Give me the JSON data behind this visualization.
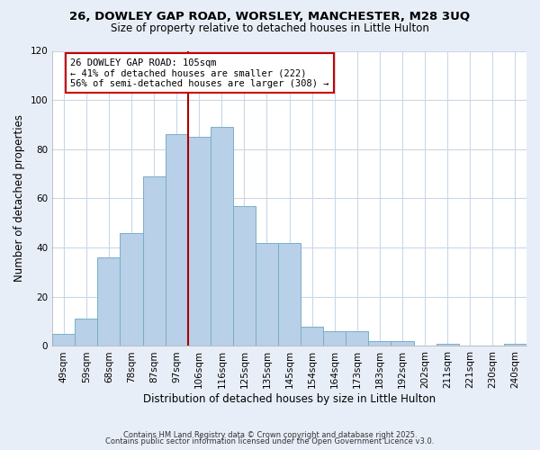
{
  "title1": "26, DOWLEY GAP ROAD, WORSLEY, MANCHESTER, M28 3UQ",
  "title2": "Size of property relative to detached houses in Little Hulton",
  "xlabel": "Distribution of detached houses by size in Little Hulton",
  "ylabel": "Number of detached properties",
  "bar_labels": [
    "49sqm",
    "59sqm",
    "68sqm",
    "78sqm",
    "87sqm",
    "97sqm",
    "106sqm",
    "116sqm",
    "125sqm",
    "135sqm",
    "145sqm",
    "154sqm",
    "164sqm",
    "173sqm",
    "183sqm",
    "192sqm",
    "202sqm",
    "211sqm",
    "221sqm",
    "230sqm",
    "240sqm"
  ],
  "bar_values": [
    5,
    11,
    36,
    46,
    69,
    86,
    85,
    89,
    57,
    42,
    42,
    8,
    6,
    6,
    2,
    2,
    0,
    1,
    0,
    0,
    1
  ],
  "bar_color": "#b8d0e8",
  "bar_edgecolor": "#7aaec8",
  "vline_color": "#aa0000",
  "annotation_title": "26 DOWLEY GAP ROAD: 105sqm",
  "annotation_line1": "← 41% of detached houses are smaller (222)",
  "annotation_line2": "56% of semi-detached houses are larger (308) →",
  "ylim": [
    0,
    120
  ],
  "yticks": [
    0,
    20,
    40,
    60,
    80,
    100,
    120
  ],
  "footer1": "Contains HM Land Registry data © Crown copyright and database right 2025.",
  "footer2": "Contains public sector information licensed under the Open Government Licence v3.0.",
  "background_color": "#e8eef8",
  "plot_background": "#ffffff",
  "grid_color": "#c8d8e8"
}
